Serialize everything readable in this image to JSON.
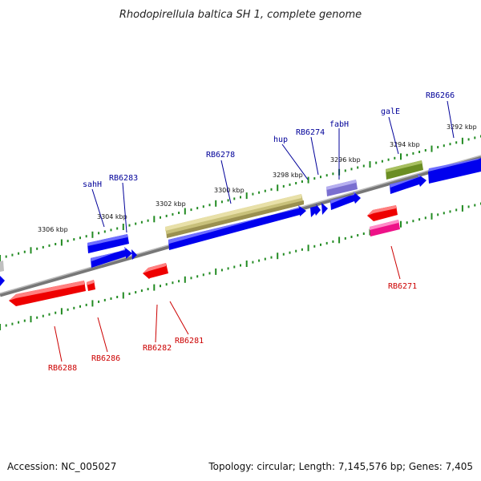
{
  "title": "Rhodopirellula baltica SH 1, complete genome",
  "footer": {
    "accession": "Accession: NC_005027",
    "summary": "Topology: circular; Length: 7,145,576 bp; Genes: 7,405"
  },
  "scale_labels": [
    "3292 kbp",
    "3294 kbp",
    "3296 kbp",
    "3298 kbp",
    "3300 kbp",
    "3302 kbp",
    "3304 kbp",
    "3306 kbp"
  ],
  "forward_labels": [
    "RB6266",
    "galE",
    "fabH",
    "RB6274",
    "hup",
    "RB6278",
    "RB6283",
    "sahH"
  ],
  "reverse_labels": [
    "RB6271",
    "RB6281",
    "RB6282",
    "RB6286",
    "RB6288"
  ],
  "colors": {
    "forward_cds": "#0000ee",
    "reverse_cds": "#ee0000",
    "khaki_gene": "#c8c07a",
    "olive_gene": "#6b8e23",
    "purple_gene": "#7a6fd0",
    "pink_gene": "#ee1188",
    "backbone": "#888888",
    "tick": "#228b22",
    "forward_label": "#000099",
    "reverse_label": "#cc0000"
  }
}
